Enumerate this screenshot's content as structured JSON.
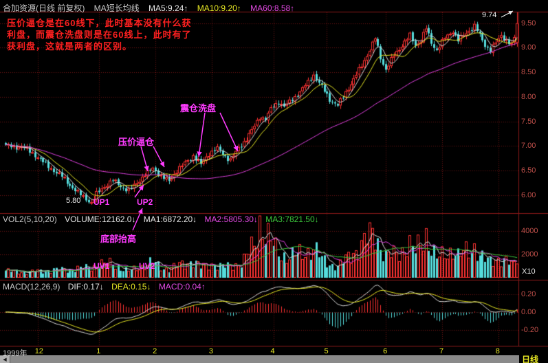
{
  "header": {
    "title": "合加资源(日线 前复权)",
    "ma_group_label": "MA短长均线",
    "ma5": "MA5:9.24↑",
    "ma10": "MA10:9.20↑",
    "ma60": "MA60:8.58↑"
  },
  "annotations": {
    "note_lines": [
      "压价逼仓是在60线下，此时基本没有什么获",
      "利盘，而震仓洗盘则是在60线上，此时有了",
      "获利盘，这就是两者的区别。"
    ],
    "shakeout": "震仓洗盘",
    "press": "压价逼仓",
    "up1": "UP1",
    "up2": "UP2",
    "uv1": "UV1",
    "uv2": "UV2",
    "bottom_rise": "底部抬高",
    "low_label": "5.80",
    "high_label": "9.74"
  },
  "vol_header": {
    "name": "VOL2(5,10,20)",
    "volume": "VOLUME:12162.0↓",
    "ma1": "MA1:6872.20↓",
    "ma2": "MA2:5805.30↓",
    "ma3": "MA3:7821.50↓"
  },
  "macd_header": {
    "name": "MACD(12,26,9)",
    "dif": "DIF:0.17↓",
    "dea": "DEA:0.15↓",
    "macd": "MACD:0.04↑"
  },
  "footer": {
    "year": "1999年",
    "period": "日线",
    "scroll_left": "◀"
  },
  "axes": {
    "price_ticks": [
      "9.50",
      "9.00",
      "8.50",
      "8.00",
      "7.50",
      "7.00",
      "6.50",
      "6.00"
    ],
    "volume_ticks": [
      "4000",
      "2000"
    ],
    "volume_multiplier": "X10",
    "macd_ticks": [
      "0.20",
      "0.00",
      "-0.20"
    ]
  },
  "colors": {
    "background": "#000000",
    "grid": "#6e1212",
    "border": "#8a1818",
    "up": "#ff3232",
    "down": "#55dcdc",
    "ma5": "#d8d8d8",
    "ma10": "#e8e824",
    "ma60": "#e040e0",
    "vol_ma3": "#3cc83c",
    "axis_text": "#c0504a",
    "annotation_red": "#ff2020",
    "annotation_magenta": "#ff3cff"
  },
  "chart_data": {
    "type": "candlestick",
    "instrument": "合加资源",
    "period": "日线",
    "adjustment": "前复权",
    "n_days": 192,
    "price_range_shown": [
      6.0,
      9.5
    ],
    "low_point": {
      "day": 32,
      "price": 5.8
    },
    "last_candle": {
      "open": 9.1,
      "high": 9.74,
      "low": 9.02,
      "close": 9.5,
      "volume": 1216
    },
    "close_keypoints": [
      [
        0,
        7.02
      ],
      [
        3,
        6.96
      ],
      [
        6,
        7.0
      ],
      [
        9,
        6.88
      ],
      [
        12,
        6.78
      ],
      [
        15,
        6.62
      ],
      [
        18,
        6.5
      ],
      [
        21,
        6.38
      ],
      [
        24,
        6.2
      ],
      [
        27,
        6.05
      ],
      [
        30,
        5.92
      ],
      [
        32,
        5.84
      ],
      [
        34,
        6.02
      ],
      [
        37,
        6.18
      ],
      [
        40,
        6.3
      ],
      [
        43,
        6.18
      ],
      [
        46,
        6.08
      ],
      [
        49,
        6.25
      ],
      [
        52,
        6.42
      ],
      [
        55,
        6.55
      ],
      [
        58,
        6.38
      ],
      [
        61,
        6.28
      ],
      [
        64,
        6.5
      ],
      [
        67,
        6.65
      ],
      [
        70,
        6.8
      ],
      [
        73,
        6.62
      ],
      [
        76,
        6.85
      ],
      [
        79,
        6.95
      ],
      [
        82,
        6.78
      ],
      [
        84,
        6.72
      ],
      [
        87,
        6.95
      ],
      [
        90,
        7.15
      ],
      [
        93,
        7.4
      ],
      [
        95,
        7.6
      ],
      [
        97,
        7.55
      ],
      [
        99,
        7.75
      ],
      [
        102,
        7.9
      ],
      [
        104,
        7.8
      ],
      [
        107,
        7.95
      ],
      [
        110,
        8.1
      ],
      [
        113,
        8.3
      ],
      [
        115,
        8.45
      ],
      [
        118,
        8.2
      ],
      [
        121,
        7.95
      ],
      [
        124,
        7.82
      ],
      [
        127,
        8.1
      ],
      [
        130,
        8.35
      ],
      [
        133,
        8.65
      ],
      [
        136,
        8.95
      ],
      [
        138,
        9.2
      ],
      [
        140,
        8.8
      ],
      [
        142,
        8.55
      ],
      [
        145,
        8.85
      ],
      [
        148,
        9.05
      ],
      [
        151,
        9.25
      ],
      [
        153,
        9.05
      ],
      [
        155,
        9.15
      ],
      [
        157,
        9.4
      ],
      [
        159,
        9.1
      ],
      [
        161,
        8.95
      ],
      [
        164,
        9.2
      ],
      [
        167,
        9.35
      ],
      [
        169,
        9.15
      ],
      [
        172,
        9.3
      ],
      [
        175,
        9.45
      ],
      [
        177,
        9.25
      ],
      [
        179,
        9.05
      ],
      [
        181,
        8.95
      ],
      [
        183,
        9.1
      ],
      [
        185,
        9.25
      ],
      [
        187,
        9.15
      ],
      [
        189,
        9.05
      ],
      [
        190,
        9.2
      ],
      [
        191,
        9.5
      ]
    ],
    "volume_keypoints": [
      [
        0,
        600
      ],
      [
        8,
        480
      ],
      [
        16,
        650
      ],
      [
        24,
        720
      ],
      [
        30,
        850
      ],
      [
        32,
        950
      ],
      [
        36,
        1150
      ],
      [
        40,
        1250
      ],
      [
        44,
        700
      ],
      [
        46,
        600
      ],
      [
        50,
        900
      ],
      [
        55,
        1350
      ],
      [
        58,
        900
      ],
      [
        61,
        750
      ],
      [
        65,
        1100
      ],
      [
        70,
        1450
      ],
      [
        73,
        900
      ],
      [
        77,
        1200
      ],
      [
        81,
        950
      ],
      [
        84,
        1000
      ],
      [
        88,
        1300
      ],
      [
        90,
        1800
      ],
      [
        93,
        2900
      ],
      [
        95,
        4800
      ],
      [
        97,
        3800
      ],
      [
        99,
        3000
      ],
      [
        102,
        2200
      ],
      [
        105,
        1800
      ],
      [
        108,
        1900
      ],
      [
        110,
        2100
      ],
      [
        113,
        2300
      ],
      [
        115,
        2500
      ],
      [
        118,
        1600
      ],
      [
        121,
        1200
      ],
      [
        124,
        950
      ],
      [
        127,
        1600
      ],
      [
        130,
        2200
      ],
      [
        133,
        2700
      ],
      [
        136,
        3600
      ],
      [
        138,
        3950
      ],
      [
        140,
        2600
      ],
      [
        142,
        1800
      ],
      [
        145,
        2000
      ],
      [
        148,
        2400
      ],
      [
        151,
        2700
      ],
      [
        153,
        2200
      ],
      [
        155,
        3100
      ],
      [
        157,
        3800
      ],
      [
        159,
        2400
      ],
      [
        161,
        1600
      ],
      [
        164,
        2100
      ],
      [
        167,
        2400
      ],
      [
        169,
        1800
      ],
      [
        172,
        2300
      ],
      [
        175,
        2700
      ],
      [
        177,
        1900
      ],
      [
        179,
        1500
      ],
      [
        181,
        1400
      ],
      [
        183,
        1700
      ],
      [
        185,
        1600
      ],
      [
        187,
        1400
      ],
      [
        189,
        1150
      ],
      [
        191,
        1216
      ]
    ],
    "months": [
      {
        "label": "12",
        "day": 12
      },
      {
        "label": "1",
        "day": 35
      },
      {
        "label": "2",
        "day": 56
      },
      {
        "label": "3",
        "day": 77
      },
      {
        "label": "4",
        "day": 100
      },
      {
        "label": "5",
        "day": 120
      },
      {
        "label": "6",
        "day": 142
      },
      {
        "label": "7",
        "day": 163
      },
      {
        "label": "8",
        "day": 184
      }
    ],
    "overlays": {
      "ma5_color": "white",
      "ma10_color": "yellow",
      "ma60_color": "magenta"
    },
    "indicator_values": {
      "ma5": 9.24,
      "ma10": 9.2,
      "ma60": 8.58,
      "volume": 12162.0,
      "vol_ma1": 6872.2,
      "vol_ma2": 5805.3,
      "vol_ma3": 7821.5,
      "dif": 0.17,
      "dea": 0.15,
      "macd": 0.04
    }
  }
}
